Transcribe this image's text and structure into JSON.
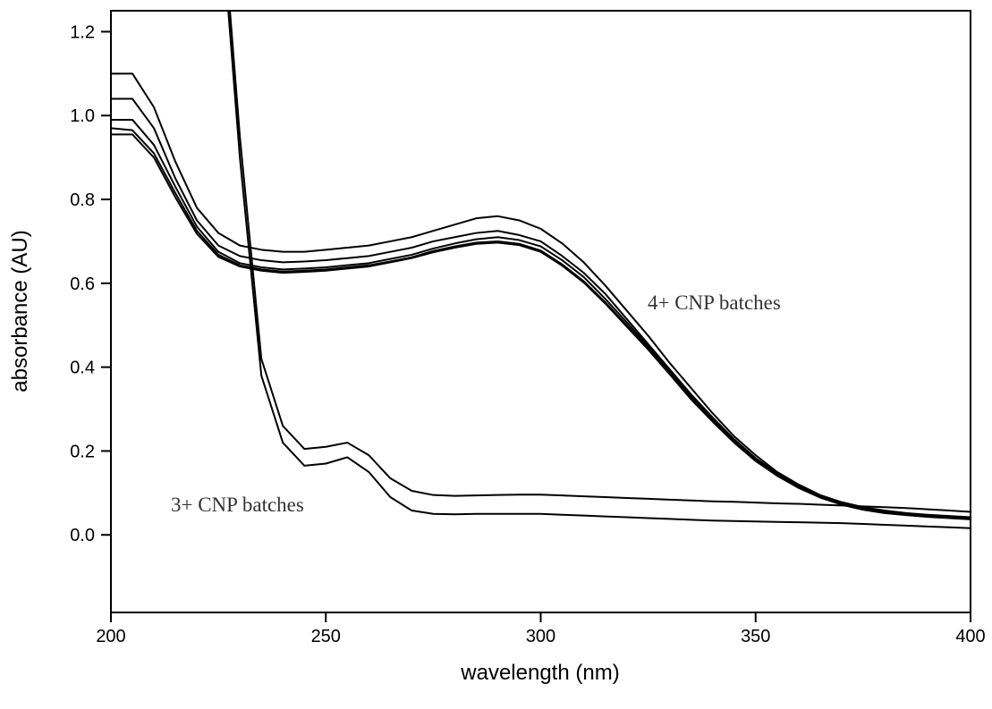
{
  "chart_data": {
    "type": "line",
    "x_label": "wavelength (nm)",
    "y_label": "absorbance (AU)",
    "annotations": [
      "4+ CNP batches",
      "3+ CNP batches"
    ],
    "x": [
      200,
      205,
      210,
      215,
      220,
      225,
      230,
      235,
      240,
      245,
      250,
      255,
      260,
      265,
      270,
      275,
      280,
      285,
      290,
      295,
      300,
      305,
      310,
      315,
      320,
      325,
      330,
      335,
      340,
      345,
      350,
      355,
      360,
      365,
      370,
      375,
      380,
      385,
      390,
      395,
      400
    ],
    "series": [
      {
        "color": "#000000",
        "values": [
          1.1,
          1.1,
          1.02,
          0.89,
          0.78,
          0.72,
          0.69,
          0.68,
          0.675,
          0.675,
          0.68,
          0.685,
          0.69,
          0.7,
          0.71,
          0.725,
          0.74,
          0.755,
          0.76,
          0.75,
          0.73,
          0.695,
          0.65,
          0.595,
          0.535,
          0.475,
          0.41,
          0.35,
          0.29,
          0.235,
          0.19,
          0.15,
          0.12,
          0.095,
          0.078,
          0.066,
          0.058,
          0.052,
          0.048,
          0.045,
          0.042
        ]
      },
      {
        "color": "#000000",
        "values": [
          1.04,
          1.04,
          0.97,
          0.85,
          0.75,
          0.69,
          0.665,
          0.655,
          0.65,
          0.652,
          0.655,
          0.66,
          0.665,
          0.675,
          0.685,
          0.7,
          0.71,
          0.72,
          0.725,
          0.715,
          0.7,
          0.665,
          0.625,
          0.575,
          0.515,
          0.455,
          0.395,
          0.335,
          0.28,
          0.228,
          0.183,
          0.147,
          0.117,
          0.093,
          0.076,
          0.064,
          0.056,
          0.051,
          0.047,
          0.044,
          0.041
        ]
      },
      {
        "color": "#000000",
        "values": [
          0.99,
          0.99,
          0.93,
          0.83,
          0.735,
          0.675,
          0.648,
          0.638,
          0.633,
          0.635,
          0.638,
          0.643,
          0.648,
          0.658,
          0.668,
          0.683,
          0.695,
          0.705,
          0.71,
          0.703,
          0.688,
          0.655,
          0.615,
          0.563,
          0.507,
          0.45,
          0.39,
          0.33,
          0.275,
          0.225,
          0.18,
          0.145,
          0.115,
          0.092,
          0.075,
          0.063,
          0.055,
          0.05,
          0.046,
          0.043,
          0.04
        ]
      },
      {
        "color": "#000000",
        "values": [
          0.97,
          0.965,
          0.91,
          0.815,
          0.725,
          0.668,
          0.643,
          0.633,
          0.628,
          0.63,
          0.633,
          0.638,
          0.643,
          0.652,
          0.662,
          0.677,
          0.688,
          0.697,
          0.7,
          0.694,
          0.678,
          0.645,
          0.605,
          0.555,
          0.5,
          0.445,
          0.386,
          0.326,
          0.272,
          0.222,
          0.178,
          0.143,
          0.113,
          0.09,
          0.073,
          0.061,
          0.053,
          0.048,
          0.044,
          0.041,
          0.038
        ]
      },
      {
        "color": "#000000",
        "values": [
          0.955,
          0.955,
          0.9,
          0.805,
          0.718,
          0.663,
          0.64,
          0.63,
          0.625,
          0.627,
          0.63,
          0.635,
          0.64,
          0.65,
          0.66,
          0.674,
          0.685,
          0.694,
          0.697,
          0.691,
          0.675,
          0.642,
          0.602,
          0.552,
          0.497,
          0.442,
          0.383,
          0.323,
          0.27,
          0.22,
          0.176,
          0.141,
          0.112,
          0.089,
          0.072,
          0.06,
          0.052,
          0.047,
          0.043,
          0.04,
          0.037
        ]
      },
      {
        "color": "#000000",
        "values": [
          null,
          null,
          null,
          null,
          null,
          1.6,
          0.95,
          0.42,
          0.26,
          0.205,
          0.21,
          0.22,
          0.19,
          0.135,
          0.105,
          0.095,
          0.093,
          0.094,
          0.095,
          0.096,
          0.096,
          0.094,
          0.092,
          0.09,
          0.088,
          0.086,
          0.084,
          0.082,
          0.08,
          0.079,
          0.077,
          0.075,
          0.074,
          0.072,
          0.07,
          0.068,
          0.066,
          0.064,
          0.061,
          0.058,
          0.055
        ]
      },
      {
        "color": "#000000",
        "values": [
          null,
          null,
          null,
          null,
          null,
          1.55,
          0.9,
          0.38,
          0.22,
          0.165,
          0.17,
          0.185,
          0.15,
          0.09,
          0.058,
          0.05,
          0.049,
          0.05,
          0.05,
          0.05,
          0.05,
          0.048,
          0.046,
          0.044,
          0.042,
          0.04,
          0.038,
          0.036,
          0.034,
          0.033,
          0.032,
          0.031,
          0.03,
          0.029,
          0.028,
          0.026,
          0.024,
          0.022,
          0.02,
          0.018,
          0.016
        ]
      }
    ],
    "xlim": [
      200,
      400
    ],
    "xticks": [
      200,
      250,
      300,
      350,
      400
    ],
    "ylim": [
      -0.185,
      1.25
    ],
    "yticks": [
      {
        "value": 0,
        "label": "0.0"
      },
      0.2,
      0.4,
      0.6,
      0.8,
      {
        "value": 1,
        "label": "1.0"
      },
      1.2
    ],
    "grid": false
  }
}
